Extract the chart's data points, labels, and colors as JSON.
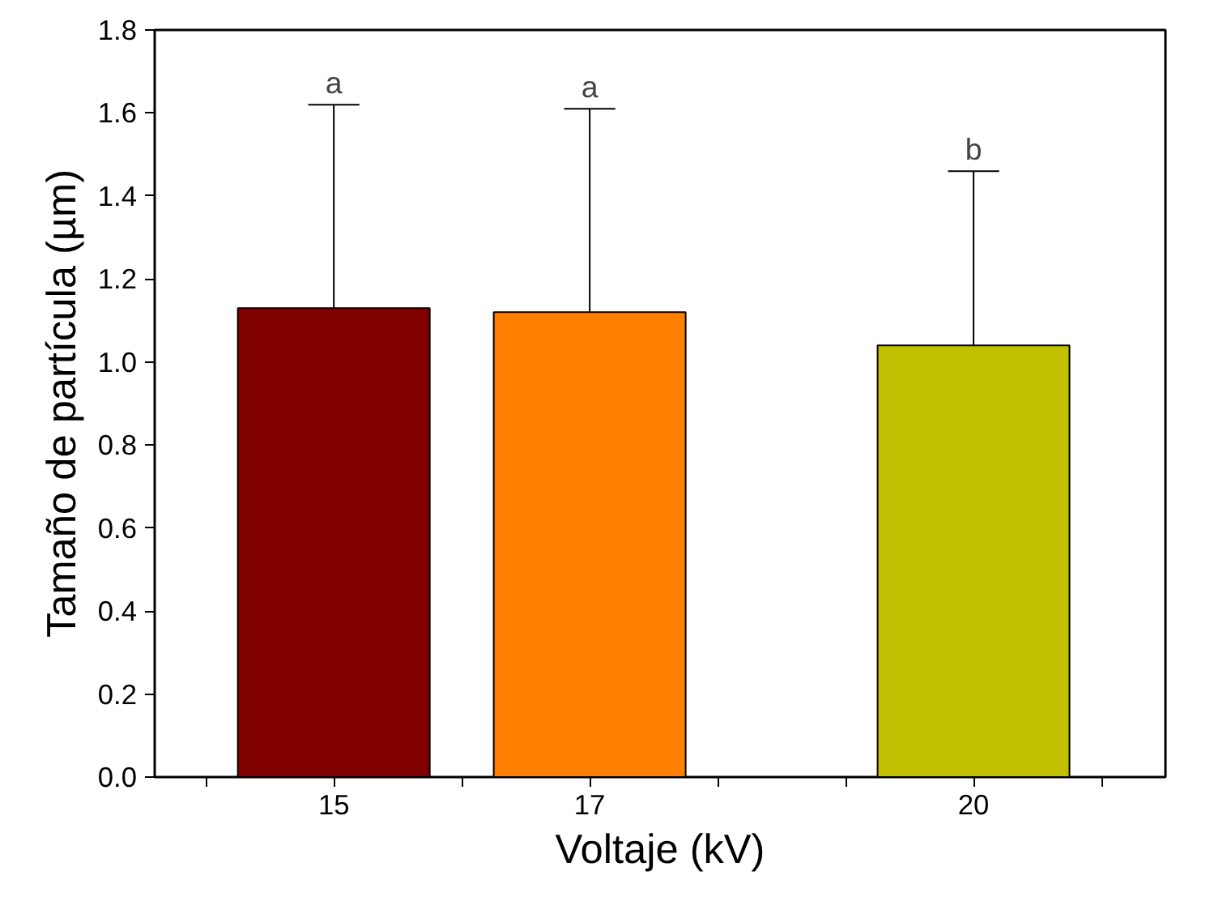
{
  "chart_data": {
    "type": "bar",
    "xlabel": "Voltaje (kV)",
    "ylabel": "Tamaño de partícula (µm)",
    "x": [
      15,
      17,
      20
    ],
    "values": [
      1.13,
      1.12,
      1.04
    ],
    "colors": [
      "#800000",
      "#ff8000",
      "#c0c000"
    ],
    "errors": [
      [
        1.13,
        1.62
      ],
      [
        1.12,
        1.61
      ],
      [
        1.04,
        1.46
      ]
    ],
    "xlim": [
      13.6,
      21.5
    ],
    "xticks": [
      {
        "value": 14,
        "label": null
      },
      15,
      {
        "value": 16,
        "label": null
      },
      17,
      {
        "value": 18,
        "label": null
      },
      {
        "value": 19,
        "label": null
      },
      20,
      {
        "value": 21,
        "label": null
      }
    ],
    "ylim": [
      0,
      1.8
    ],
    "yticks": [
      {
        "value": 0,
        "label": "0.0"
      },
      {
        "value": 0.2,
        "label": "0.2"
      },
      {
        "value": 0.4,
        "label": "0.4"
      },
      {
        "value": 0.6,
        "label": "0.6"
      },
      {
        "value": 0.8,
        "label": "0.8"
      },
      {
        "value": 1.0,
        "label": "1.0"
      },
      {
        "value": 1.2,
        "label": "1.2"
      },
      {
        "value": 1.4,
        "label": "1.4"
      },
      {
        "value": 1.6,
        "label": "1.6"
      },
      {
        "value": 1.8,
        "label": "1.8"
      }
    ],
    "annotations": [
      {
        "text": "a",
        "x": 15,
        "y": 1.62
      },
      {
        "text": "a",
        "x": 17,
        "y": 1.61
      },
      {
        "text": "b",
        "x": 20,
        "y": 1.46
      }
    ],
    "grid": false
  }
}
